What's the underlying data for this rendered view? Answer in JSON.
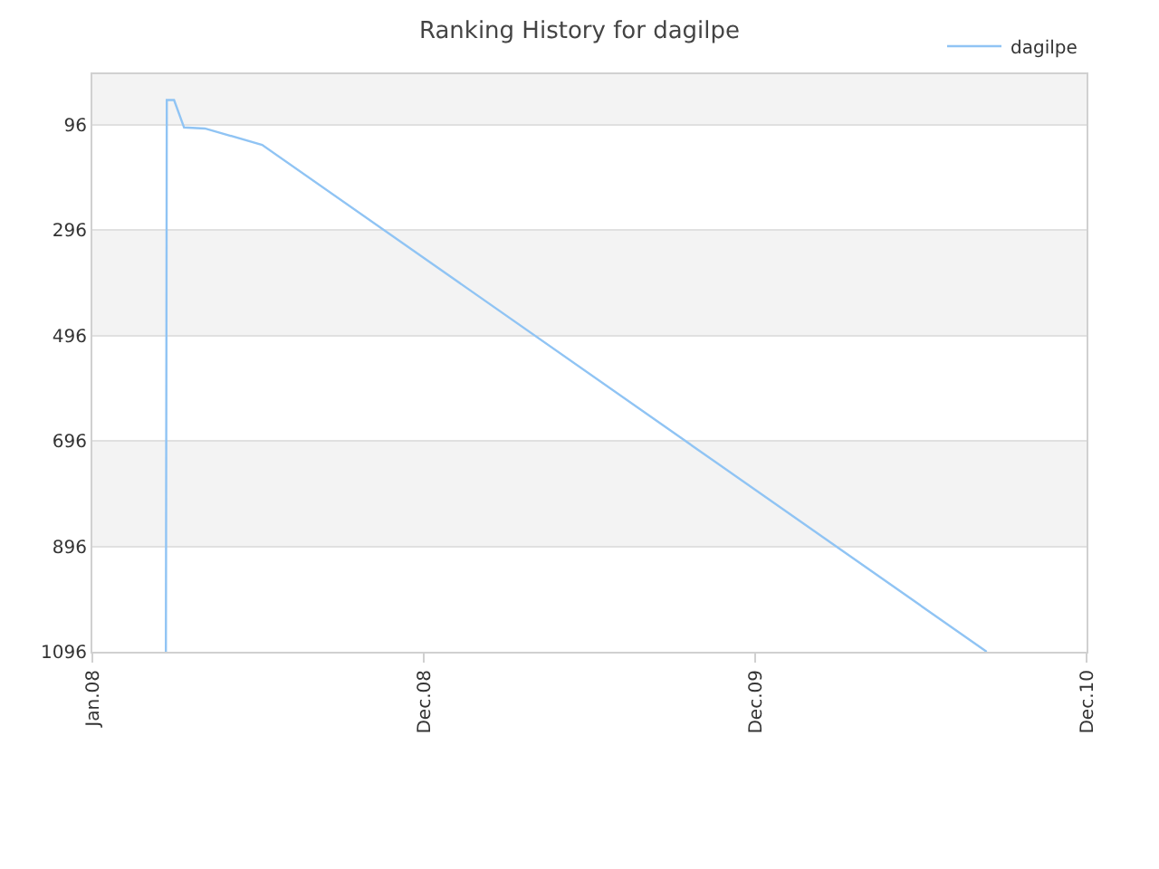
{
  "chart_data": {
    "type": "line",
    "title": "Ranking History for dagilpe",
    "x": [
      "2008-03-22",
      "2008-03-23",
      "2008-03-31",
      "2008-04-11",
      "2008-05-04",
      "2008-07-06",
      "2010-09-12"
    ],
    "series": [
      {
        "name": "dagilpe",
        "color": "#90c4f4",
        "values": [
          1096,
          49,
          49,
          101,
          103,
          134,
          1096
        ]
      }
    ],
    "ylim": [
      1096,
      0
    ],
    "yticks": [
      96,
      296,
      496,
      696,
      896,
      1096
    ],
    "xlim": [
      "2008-01-01",
      "2010-12-31"
    ],
    "xticks": [
      {
        "value": "2008-01-01",
        "label": "Jan.08"
      },
      {
        "value": "2008-12-31",
        "label": "Dec.08"
      },
      {
        "value": "2009-12-31",
        "label": "Dec.09"
      },
      {
        "value": "2010-12-31",
        "label": "Dec.10"
      }
    ],
    "grid": "y",
    "legend": "top right",
    "marker": "none",
    "line_style": "solid"
  }
}
